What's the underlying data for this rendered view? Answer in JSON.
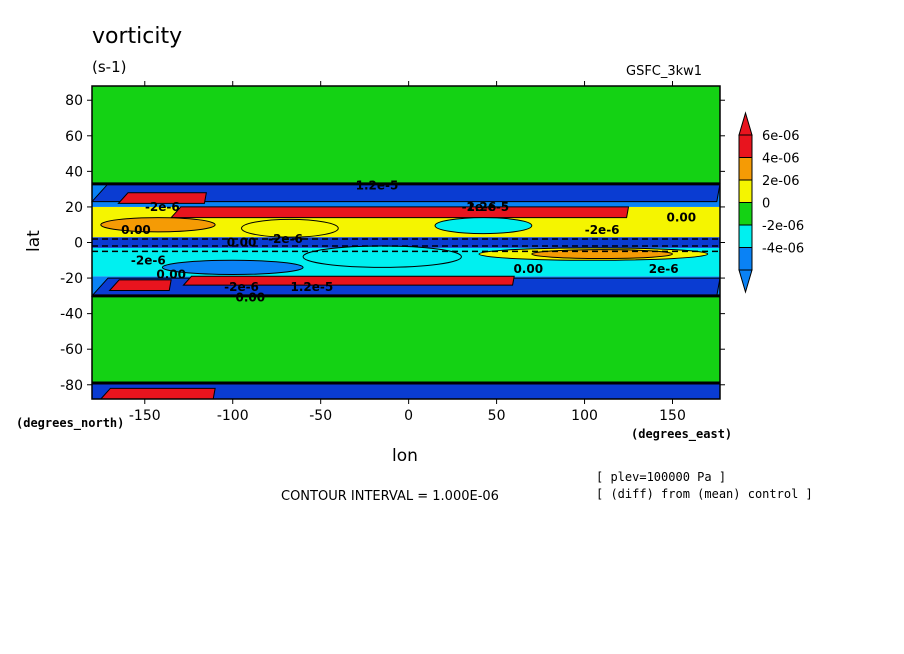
{
  "title": "vorticity",
  "units": "(s-1)",
  "model": "GSFC_3kw1",
  "ylabel": "lat",
  "yunits": "(degrees_north)",
  "xlabel": "lon",
  "xunits": "(degrees_east)",
  "contour_interval": "CONTOUR INTERVAL = 1.000E-06",
  "note_plev": "[ plev=100000 Pa ]",
  "note_diff": "[ (diff) from (mean) control ]",
  "colors": {
    "c6": "#e8141e",
    "c4": "#f59b05",
    "c2": "#f5f500",
    "c0": "#14d214",
    "cm2": "#00f0f0",
    "cm4": "#0a82f5",
    "cm6": "#0a3cd2"
  },
  "chart_data": {
    "type": "heatmap",
    "subtype": "filled-contour",
    "xlim": [
      -180,
      177
    ],
    "ylim": [
      -88,
      88
    ],
    "x_ticks": [
      -150,
      -100,
      -50,
      0,
      50,
      100,
      150
    ],
    "y_ticks": [
      -80,
      -60,
      -40,
      -20,
      0,
      20,
      40,
      60,
      80
    ],
    "x_tick_labels": [
      "-150",
      "-100",
      "-50",
      "0",
      "50",
      "100",
      "150"
    ],
    "y_tick_labels": [
      "-80",
      "-60",
      "-40",
      "-20",
      "0",
      "20",
      "40",
      "60",
      "80"
    ],
    "colorbar": {
      "levels": [
        -4e-06,
        -2e-06,
        0,
        2e-06,
        4e-06,
        6e-06
      ],
      "labels": [
        "-4e-06",
        "-2e-06",
        "0",
        "2e-06",
        "4e-06",
        "6e-06"
      ],
      "colors": [
        "#0a82f5",
        "#00f0f0",
        "#14d214",
        "#f5f500",
        "#f59b05",
        "#e8141e"
      ],
      "extend": "both"
    },
    "bands": [
      {
        "lat": [
          -88,
          -79
        ],
        "value": -5e-06
      },
      {
        "lat": [
          -79,
          -30
        ],
        "value": 0
      },
      {
        "lat": [
          -30,
          -19
        ],
        "value": -4e-06
      },
      {
        "lat": [
          -19,
          -3
        ],
        "value": -2e-06
      },
      {
        "lat": [
          -3,
          3
        ],
        "value": -5e-06
      },
      {
        "lat": [
          3,
          20
        ],
        "value": 2e-06
      },
      {
        "lat": [
          20,
          33
        ],
        "value": -4e-06
      },
      {
        "lat": [
          33,
          88
        ],
        "value": 0
      }
    ],
    "features": [
      {
        "shape": "strip",
        "lon": [
          -180,
          177
        ],
        "lat": [
          23,
          33
        ],
        "value": -5e-06
      },
      {
        "shape": "strip",
        "lon": [
          -180,
          177
        ],
        "lat": [
          -30,
          -20
        ],
        "value": -5e-06
      },
      {
        "shape": "strip",
        "lon": [
          -135,
          125
        ],
        "lat": [
          14,
          20
        ],
        "value": 7e-06
      },
      {
        "shape": "strip",
        "lon": [
          -128,
          60
        ],
        "lat": [
          -24,
          -19
        ],
        "value": 7e-06
      },
      {
        "shape": "strip",
        "lon": [
          -165,
          -115
        ],
        "lat": [
          22,
          28
        ],
        "value": 7e-06
      },
      {
        "shape": "strip",
        "lon": [
          -170,
          -135
        ],
        "lat": [
          -27,
          -21
        ],
        "value": 7e-06
      },
      {
        "shape": "strip",
        "lon": [
          -175,
          -110
        ],
        "lat": [
          -88,
          -82
        ],
        "value": 7e-06
      },
      {
        "shape": "blob",
        "lon": [
          -175,
          -110
        ],
        "lat": [
          6,
          14
        ],
        "value": 4e-06
      },
      {
        "shape": "blob",
        "lon": [
          -95,
          -40
        ],
        "lat": [
          3,
          13
        ],
        "value": 3e-06
      },
      {
        "shape": "blob",
        "lon": [
          40,
          170
        ],
        "lat": [
          -10,
          -3
        ],
        "value": 3e-06
      },
      {
        "shape": "blob",
        "lon": [
          70,
          150
        ],
        "lat": [
          -9,
          -4
        ],
        "value": 4e-06
      },
      {
        "shape": "blob",
        "lon": [
          -60,
          30
        ],
        "lat": [
          -14,
          -2
        ],
        "value": -2e-06
      },
      {
        "shape": "blob",
        "lon": [
          15,
          70
        ],
        "lat": [
          5,
          14
        ],
        "value": -2e-06
      },
      {
        "shape": "blob",
        "lon": [
          -140,
          -60
        ],
        "lat": [
          -18,
          -10
        ],
        "value": -4e-06
      }
    ],
    "contour_labels": [
      {
        "text": "-2e-6",
        "lon": -140,
        "lat": 20
      },
      {
        "text": "1.2e-5",
        "lon": -18,
        "lat": 32
      },
      {
        "text": "1.2e-5",
        "lon": 45,
        "lat": 20
      },
      {
        "text": "-2e-6",
        "lon": 40,
        "lat": 20
      },
      {
        "text": "0.00",
        "lon": 155,
        "lat": 14
      },
      {
        "text": "0.00",
        "lon": -155,
        "lat": 7
      },
      {
        "text": "-2e-6",
        "lon": -70,
        "lat": 2
      },
      {
        "text": "0.00",
        "lon": -95,
        "lat": 0
      },
      {
        "text": "-2e-6",
        "lon": -148,
        "lat": -10
      },
      {
        "text": "0.00",
        "lon": -135,
        "lat": -18
      },
      {
        "text": "-2e-6",
        "lon": -95,
        "lat": -25
      },
      {
        "text": "1.2e-5",
        "lon": -55,
        "lat": -25
      },
      {
        "text": "0.00",
        "lon": 68,
        "lat": -15
      },
      {
        "text": "2e-6",
        "lon": 145,
        "lat": -15
      },
      {
        "text": "-2e-6",
        "lon": 110,
        "lat": 7
      },
      {
        "text": "0.00",
        "lon": -90,
        "lat": -31
      }
    ]
  }
}
